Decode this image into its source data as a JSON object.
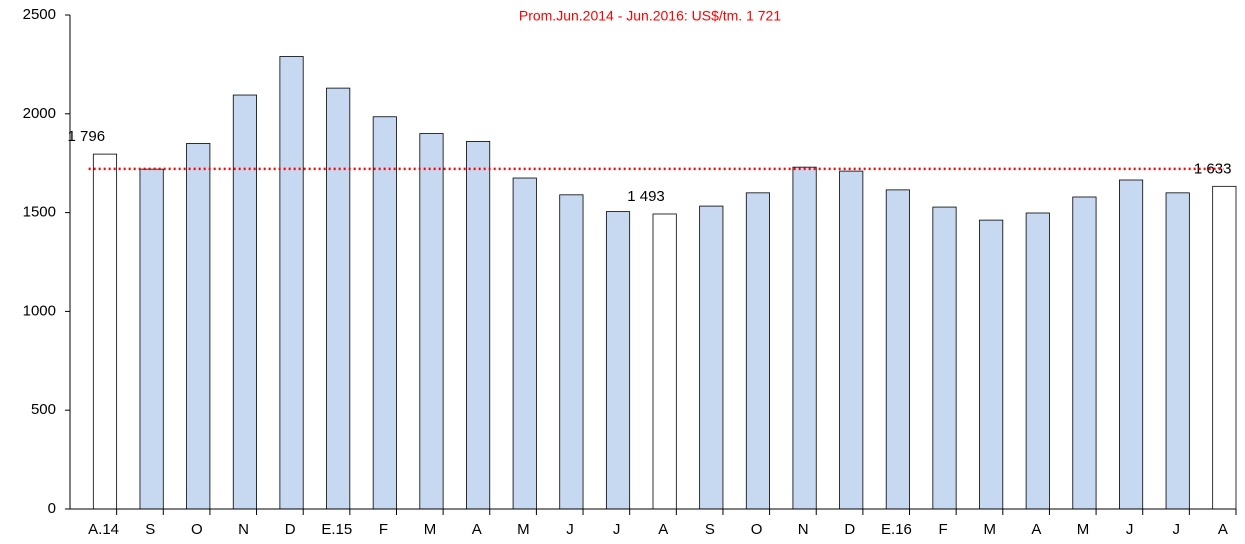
{
  "chart_data": {
    "type": "bar",
    "subtitle": "Prom.Jun.2014 - Jun.2016: US$/tm. 1 721",
    "categories": [
      "A.14",
      "S",
      "O",
      "N",
      "D",
      "E.15",
      "F",
      "M",
      "A",
      "M",
      "J",
      "J",
      "A",
      "S",
      "O",
      "N",
      "D",
      "E.16",
      "F",
      "M",
      "A",
      "M",
      "J",
      "J",
      "A"
    ],
    "values": [
      1796,
      1720,
      1850,
      2095,
      2290,
      2130,
      1985,
      1900,
      1860,
      1675,
      1590,
      1505,
      1493,
      1533,
      1600,
      1730,
      1710,
      1615,
      1528,
      1462,
      1498,
      1579,
      1665,
      1600,
      1633
    ],
    "value_labels": [
      "1 796",
      null,
      null,
      null,
      null,
      null,
      null,
      null,
      null,
      null,
      null,
      null,
      "1 493",
      null,
      null,
      null,
      null,
      null,
      null,
      null,
      null,
      null,
      null,
      null,
      "1 633"
    ],
    "colors": [
      "#ffffff",
      "#c6d9f1",
      "#c6d9f1",
      "#c6d9f1",
      "#c6d9f1",
      "#c6d9f1",
      "#c6d9f1",
      "#c6d9f1",
      "#c6d9f1",
      "#c6d9f1",
      "#c6d9f1",
      "#c6d9f1",
      "#ffffff",
      "#c6d9f1",
      "#c6d9f1",
      "#c6d9f1",
      "#c6d9f1",
      "#c6d9f1",
      "#c6d9f1",
      "#c6d9f1",
      "#c6d9f1",
      "#c6d9f1",
      "#c6d9f1",
      "#c6d9f1",
      "#ffffff"
    ],
    "reference_line": {
      "value": 1721,
      "color": "#ff0000"
    },
    "ylim": [
      0,
      2500
    ],
    "yticks": [
      0,
      500,
      1000,
      1500,
      2000,
      2500
    ]
  }
}
